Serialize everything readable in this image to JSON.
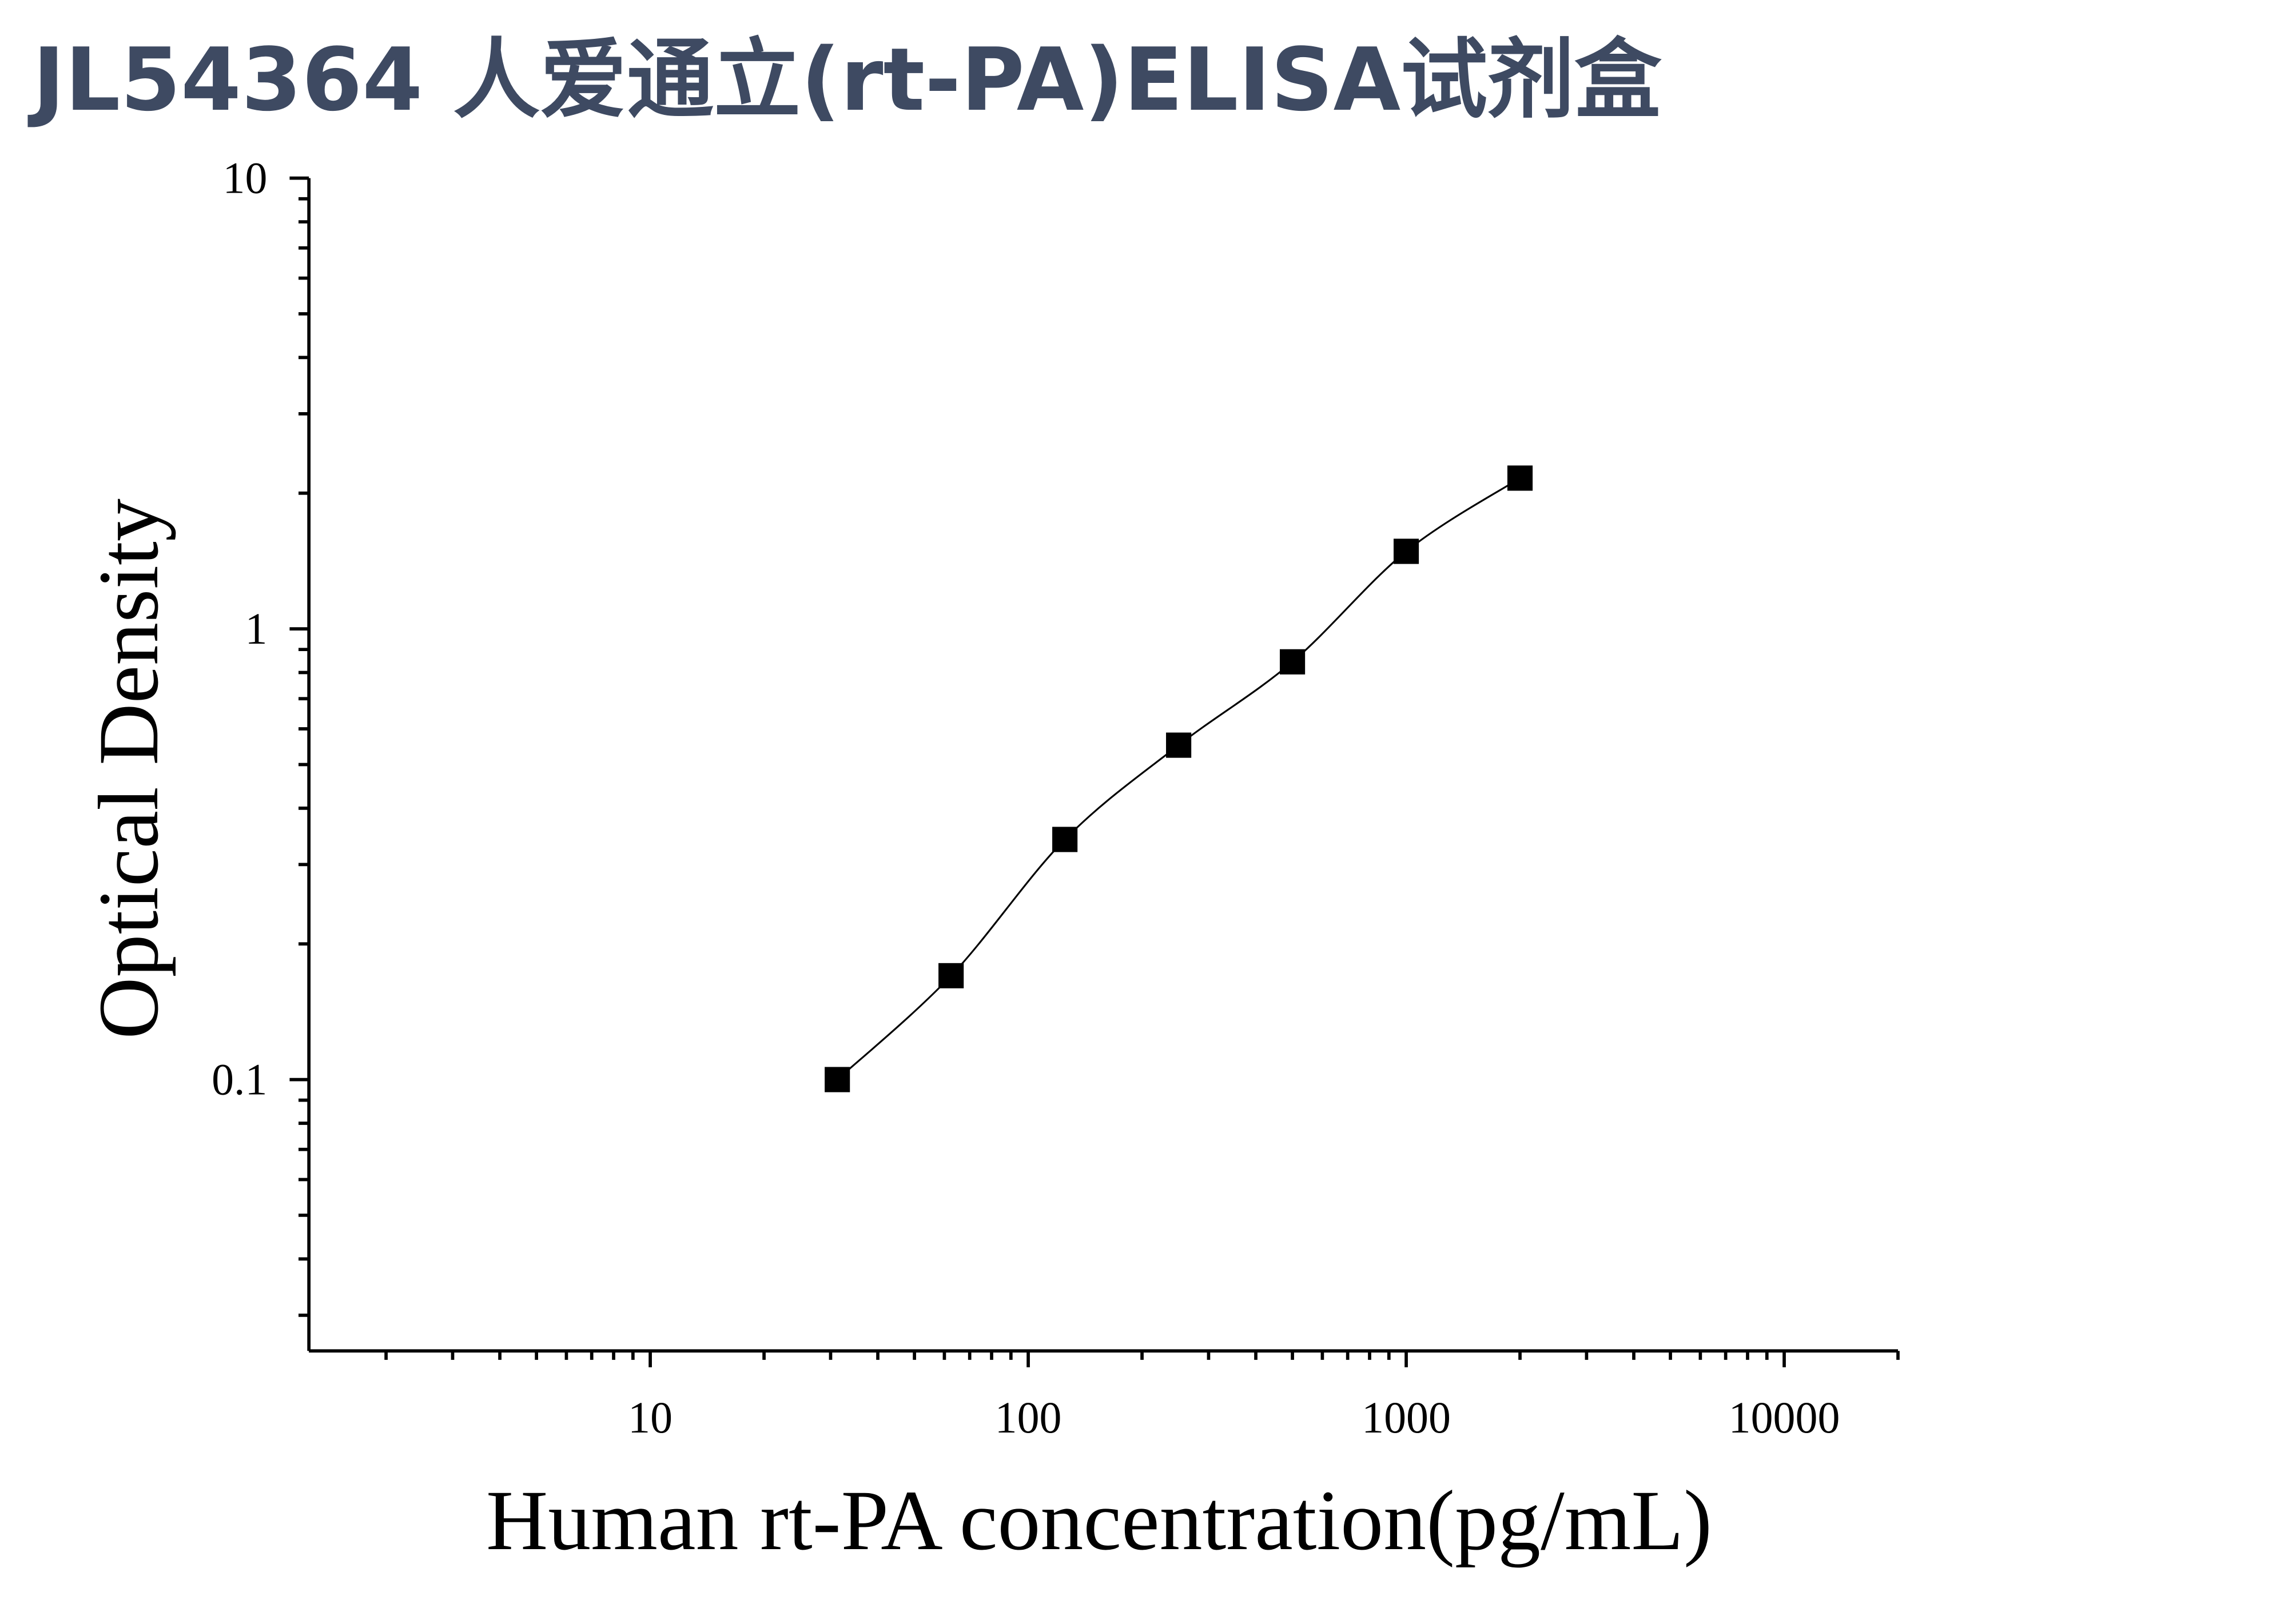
{
  "chart_data": {
    "type": "scatter",
    "title": "JL54364 人爱通立(rt-PA)ELISA试剂盒",
    "x_label": "Human rt-PA concentration(pg/mL)",
    "y_label": "Optical Density",
    "x_scale": "log",
    "y_scale": "log",
    "xlim": [
      1.25,
      20000
    ],
    "ylim": [
      0.025,
      10
    ],
    "xticks": [
      10,
      100,
      1000,
      10000
    ],
    "yticks": [
      {
        "value": 0.1,
        "label": "0.1"
      },
      1,
      10
    ],
    "series": [
      {
        "color": "#000000",
        "x": [
          31.25,
          62.5,
          125,
          250,
          500,
          1000,
          2000
        ],
        "values": [
          0.1,
          0.17,
          0.341,
          0.552,
          0.845,
          1.486,
          2.16
        ]
      }
    ]
  }
}
